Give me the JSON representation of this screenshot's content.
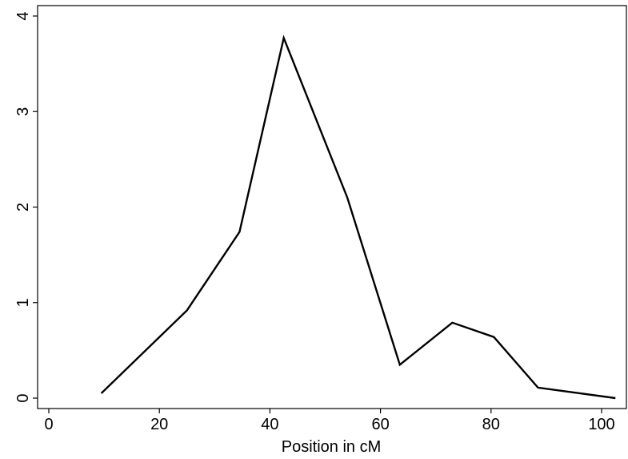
{
  "chart_data": {
    "type": "line",
    "title": "",
    "xlabel": "Position in cM",
    "ylabel": "",
    "xlim": [
      0,
      104
    ],
    "ylim": [
      0,
      4
    ],
    "xticks": [
      0,
      20,
      40,
      60,
      80,
      100
    ],
    "yticks": [
      0,
      1,
      2,
      3,
      4
    ],
    "x_tick_labels": [
      "0",
      "20",
      "40",
      "60",
      "80",
      "100"
    ],
    "y_tick_labels": [
      "0",
      "1",
      "2",
      "3",
      "4"
    ],
    "grid": false,
    "legend": "none",
    "line_color": "#000000",
    "series": [
      {
        "x": [
          9.5,
          25.0,
          34.5,
          42.5,
          54.0,
          63.5,
          73.0,
          80.5,
          88.5,
          102.5
        ],
        "y": [
          0.05,
          0.92,
          1.74,
          3.77,
          2.1,
          0.35,
          0.79,
          0.64,
          0.11,
          0.0
        ]
      }
    ]
  }
}
